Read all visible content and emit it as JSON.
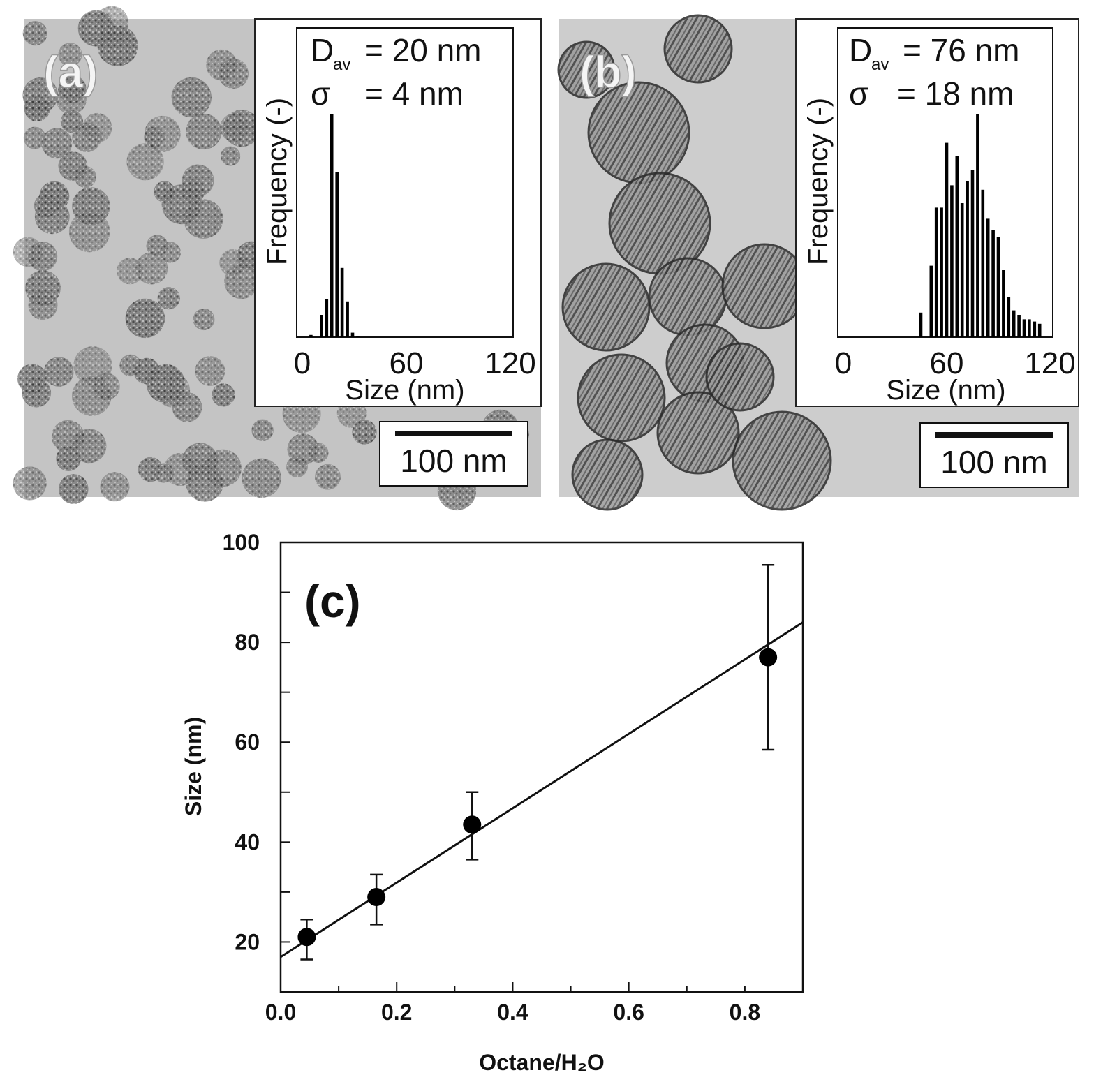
{
  "panels": {
    "a": {
      "label": "(a)",
      "inset": {
        "d_av_prefix": "D",
        "d_av_sub": "av",
        "d_av_value": "= 20 nm",
        "sigma_symbol": "σ",
        "sigma_value": "= 4 nm"
      },
      "scale_bar": "100 nm"
    },
    "b": {
      "label": "(b)",
      "inset": {
        "d_av_prefix": "D",
        "d_av_sub": "av",
        "d_av_value": "= 76 nm",
        "sigma_symbol": "σ",
        "sigma_value": "= 18 nm"
      },
      "scale_bar": "100 nm"
    },
    "c": {
      "label": "(c)"
    }
  },
  "chart_data": [
    {
      "type": "bar",
      "panel": "a",
      "title": "",
      "xlabel": "Size (nm)",
      "ylabel": "Frequency (-)",
      "xlim": [
        0,
        120
      ],
      "ylim": [
        0,
        1
      ],
      "xticks": [
        "0",
        "60",
        "120"
      ],
      "bin_width": 3,
      "x": [
        5,
        11,
        14,
        17,
        20,
        23,
        26,
        29,
        32
      ],
      "values": [
        0.01,
        0.1,
        0.17,
        1.0,
        0.74,
        0.31,
        0.16,
        0.02,
        0.005
      ]
    },
    {
      "type": "bar",
      "panel": "b",
      "title": "",
      "xlabel": "Size (nm)",
      "ylabel": "Frequency (-)",
      "xlim": [
        0,
        120
      ],
      "ylim": [
        0,
        1
      ],
      "xticks": [
        "0",
        "60",
        "120"
      ],
      "bin_width": 3,
      "x": [
        45,
        51,
        54,
        57,
        60,
        63,
        66,
        69,
        72,
        75,
        78,
        81,
        84,
        87,
        90,
        93,
        96,
        99,
        102,
        105,
        108,
        111,
        114
      ],
      "values": [
        0.11,
        0.32,
        0.58,
        0.58,
        0.87,
        0.68,
        0.81,
        0.6,
        0.7,
        0.75,
        1.0,
        0.66,
        0.53,
        0.48,
        0.45,
        0.3,
        0.18,
        0.12,
        0.1,
        0.08,
        0.08,
        0.07,
        0.06
      ]
    },
    {
      "type": "scatter",
      "panel": "c",
      "title": "",
      "xlabel": "Octane/H₂O",
      "ylabel": "Size (nm)",
      "xlim": [
        0.0,
        0.9
      ],
      "ylim": [
        10,
        100
      ],
      "xticks": [
        "0.0",
        "0.2",
        "0.4",
        "0.6",
        "0.8"
      ],
      "yticks": [
        "20",
        "40",
        "60",
        "80",
        "100"
      ],
      "x": [
        0.045,
        0.165,
        0.33,
        0.84
      ],
      "y": [
        21,
        29,
        43.5,
        77
      ],
      "err_low": [
        4.5,
        5.5,
        7,
        18.5
      ],
      "err_high": [
        3.5,
        4.5,
        6.5,
        18.5
      ],
      "fit_line": {
        "x": [
          0.0,
          0.9
        ],
        "y": [
          17,
          84
        ]
      }
    }
  ]
}
